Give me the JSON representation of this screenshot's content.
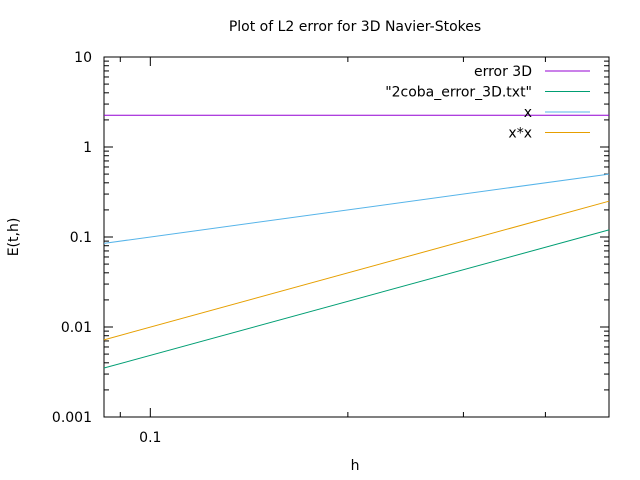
{
  "chart_data": {
    "type": "line",
    "title": "Plot of L2 error for 3D Navier-Stokes",
    "xlabel": "h",
    "ylabel": "E(t,h)",
    "x_scale": "log",
    "y_scale": "log",
    "xlim": [
      0.085,
      0.5
    ],
    "ylim": [
      0.001,
      10
    ],
    "x_ticks": [
      {
        "value": 0.1,
        "label": "0.1"
      }
    ],
    "y_ticks": [
      {
        "value": 0.001,
        "label": "0.001"
      },
      {
        "value": 0.01,
        "label": "0.01"
      },
      {
        "value": 0.1,
        "label": "0.1"
      },
      {
        "value": 1,
        "label": "1"
      },
      {
        "value": 10,
        "label": "10"
      }
    ],
    "grid": false,
    "legend_position": "top-right",
    "series": [
      {
        "name": "error 3D",
        "color": "#9400d3",
        "x": [
          0.085,
          0.5
        ],
        "y": [
          2.25,
          2.25
        ]
      },
      {
        "name": "\"2coba_error_3D.txt\"",
        "color": "#009e73",
        "x": [
          0.085,
          0.5
        ],
        "y": [
          0.0035,
          0.12
        ]
      },
      {
        "name": "x",
        "color": "#56b4e9",
        "x": [
          0.085,
          0.5
        ],
        "y": [
          0.085,
          0.5
        ]
      },
      {
        "name": "x*x",
        "color": "#e69f00",
        "x": [
          0.085,
          0.5
        ],
        "y": [
          0.0072,
          0.25
        ]
      }
    ]
  }
}
